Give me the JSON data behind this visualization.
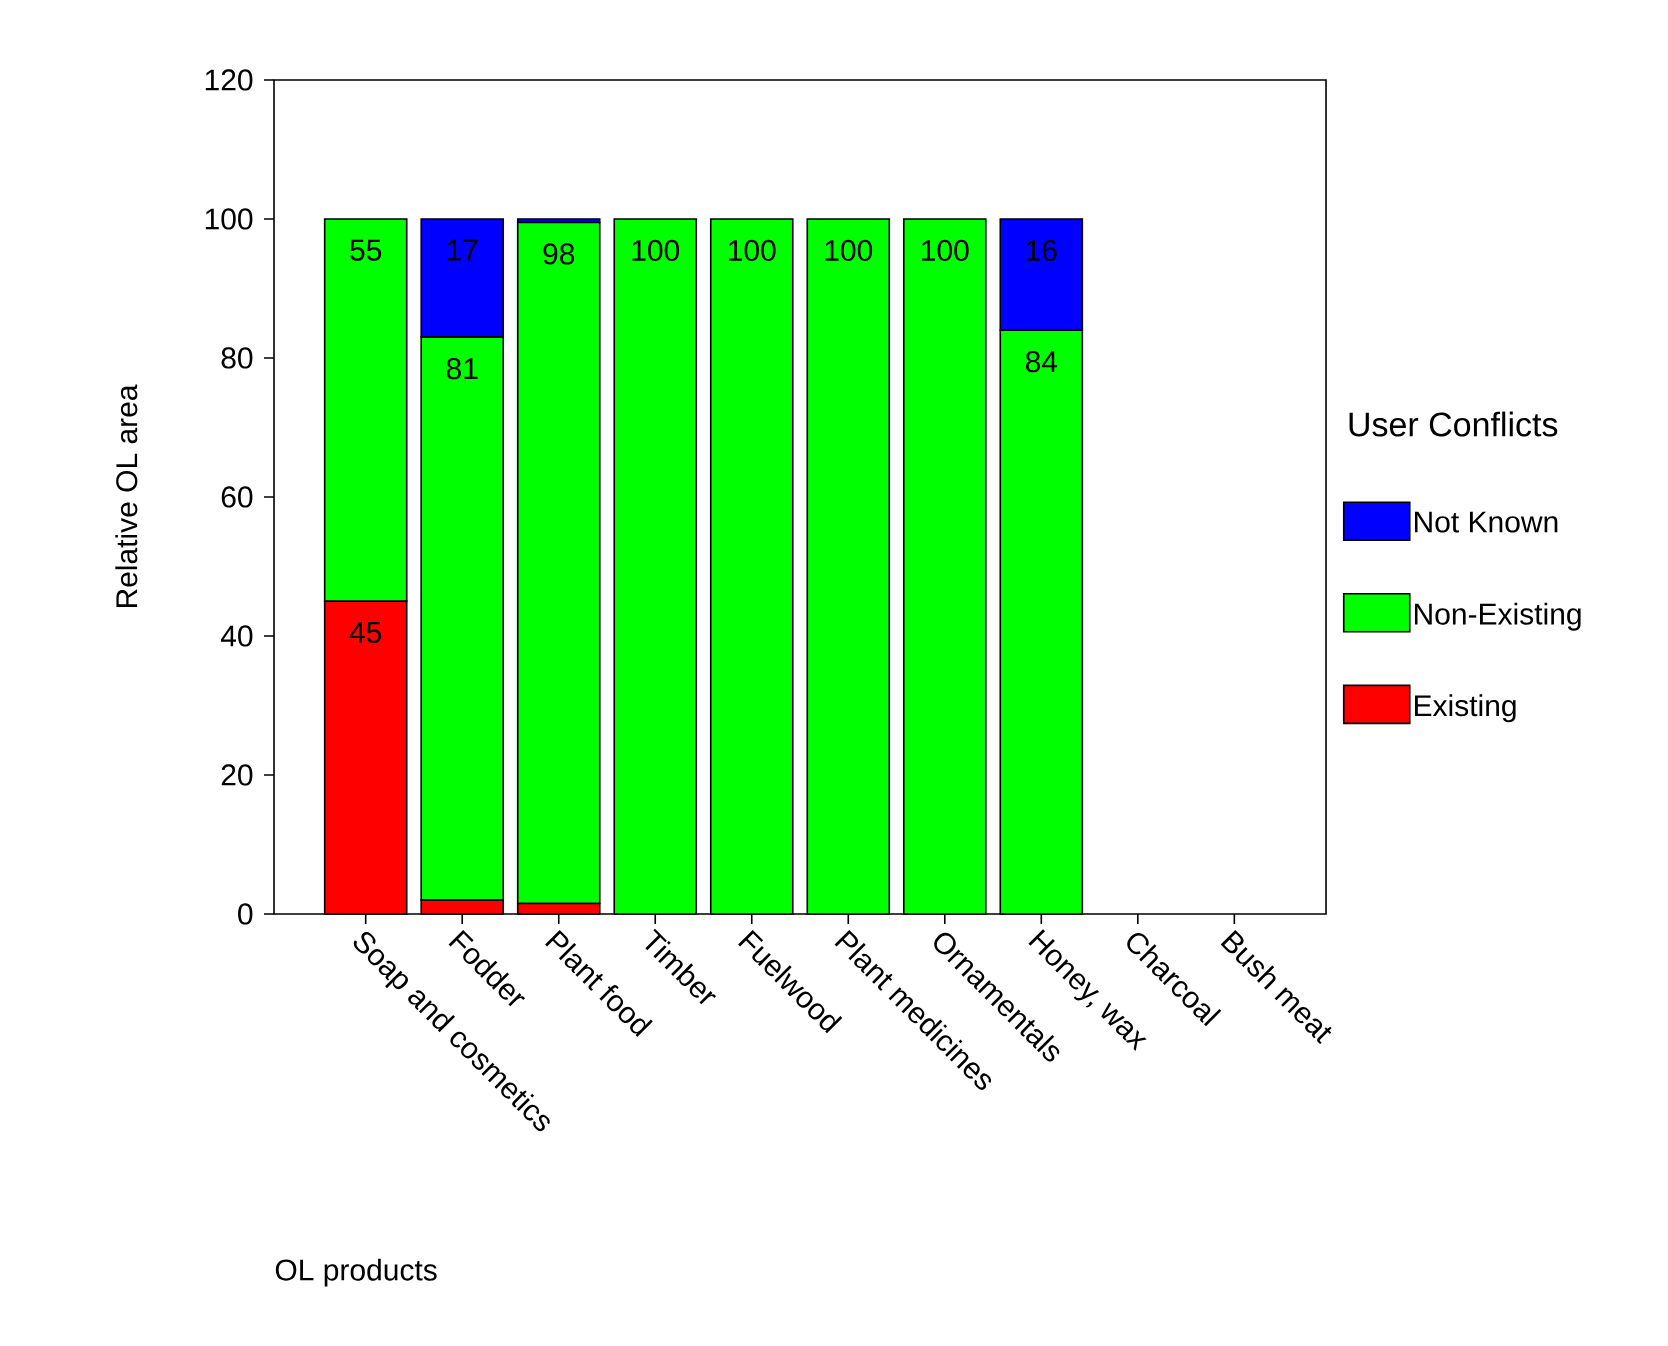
{
  "chart_data": {
    "type": "bar",
    "stacked": true,
    "xlabel": "OL products",
    "ylabel": "Relative OL area",
    "legend_title": "User Conflicts",
    "legend": "right",
    "categories": [
      "Soap and cosmetics",
      "Fodder",
      "Plant food",
      "Timber",
      "Fuelwood",
      "Plant medicines",
      "Ornamentals",
      "Honey, wax",
      "Charcoal",
      "Bush meat"
    ],
    "ylim": [
      0,
      120
    ],
    "yticks": [
      0,
      20,
      40,
      60,
      80,
      100,
      120
    ],
    "series": [
      {
        "name": "Existing",
        "color": "#ff0000",
        "values": [
          45,
          2,
          1.5,
          0,
          0,
          0,
          0,
          0,
          0,
          0
        ],
        "value_labels": [
          "45",
          null,
          null,
          null,
          null,
          null,
          null,
          null,
          null,
          null
        ]
      },
      {
        "name": "Non-Existing",
        "color": "#00ff00",
        "values": [
          55,
          81,
          98,
          100,
          100,
          100,
          100,
          84,
          0,
          0
        ],
        "value_labels": [
          "55",
          "81",
          "98",
          "100",
          "100",
          "100",
          "100",
          "84",
          null,
          null
        ]
      },
      {
        "name": "Not Known",
        "color": "#0000ff",
        "values": [
          0,
          17,
          0.5,
          0,
          0,
          0,
          0,
          16,
          0,
          0
        ],
        "value_labels": [
          null,
          "17",
          null,
          null,
          null,
          null,
          null,
          "16",
          null,
          null
        ]
      }
    ]
  }
}
